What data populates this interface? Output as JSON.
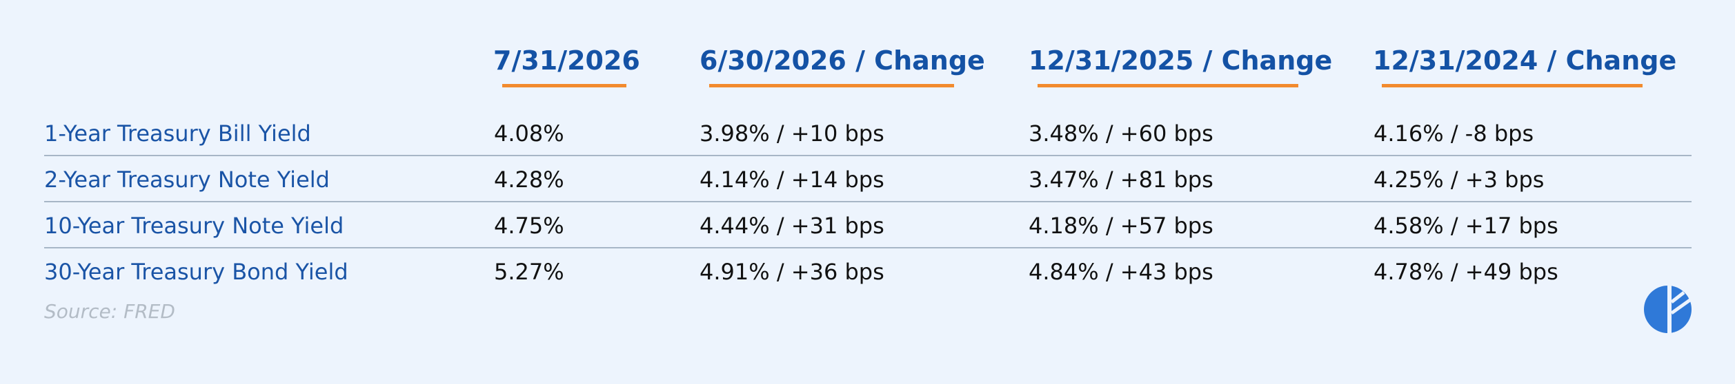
{
  "table": {
    "headers": [
      "7/31/2026",
      "6/30/2026 / Change",
      "12/31/2025 / Change",
      "12/31/2024 / Change"
    ],
    "rows": [
      {
        "label": "1-Year Treasury Bill Yield",
        "values": [
          "4.08%",
          "3.98% / +10 bps",
          "3.48% / +60 bps",
          "4.16% / -8 bps"
        ]
      },
      {
        "label": "2-Year Treasury Note Yield",
        "values": [
          "4.28%",
          "4.14% / +14 bps",
          "3.47% / +81 bps",
          "4.25% / +3 bps"
        ]
      },
      {
        "label": "10-Year Treasury Note Yield",
        "values": [
          "4.75%",
          "4.44% / +31 bps",
          "4.18% / +57 bps",
          "4.58% / +17 bps"
        ]
      },
      {
        "label": "30-Year Treasury Bond Yield",
        "values": [
          "5.27%",
          "4.91% / +36 bps",
          "4.84% / +43 bps",
          "4.78% / +49 bps"
        ]
      }
    ]
  },
  "source": "Source: FRED",
  "colors": {
    "background": "#edf4fd",
    "header_text": "#1452a5",
    "header_underline": "#f28a2d",
    "row_label_text": "#1a54a6",
    "cell_text": "#111111",
    "divider": "#a7b6c6",
    "source_text": "#b3bcc6",
    "logo": "#2f79d8"
  },
  "logo_icon": "brand-logo-icon"
}
